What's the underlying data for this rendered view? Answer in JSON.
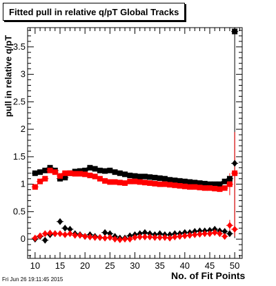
{
  "chart_data": {
    "type": "scatter",
    "title": "Fitted pull in relative q/pT  Global Tracks",
    "xlabel": "No. of Fit Points",
    "ylabel": "pull in relative q/pT",
    "xlim": [
      8.5,
      51.5
    ],
    "ylim": [
      -0.35,
      3.85
    ],
    "xticks": [
      10,
      15,
      20,
      25,
      30,
      35,
      40,
      45,
      50
    ],
    "yticks": [
      0,
      0.5,
      1,
      1.5,
      2,
      2.5,
      3,
      3.5
    ],
    "series": [
      {
        "color": "#000000",
        "marker": "square",
        "points": [
          [
            10,
            1.2
          ],
          [
            11,
            1.22
          ],
          [
            12,
            1.25
          ],
          [
            13,
            1.3
          ],
          [
            14,
            1.25
          ],
          [
            15,
            1.1
          ],
          [
            16,
            1.12
          ],
          [
            17,
            1.2
          ],
          [
            18,
            1.23
          ],
          [
            19,
            1.24
          ],
          [
            20,
            1.25
          ],
          [
            21,
            1.3
          ],
          [
            22,
            1.28
          ],
          [
            23,
            1.25
          ],
          [
            24,
            1.24
          ],
          [
            25,
            1.25
          ],
          [
            26,
            1.22
          ],
          [
            27,
            1.2
          ],
          [
            28,
            1.18
          ],
          [
            29,
            1.16
          ],
          [
            30,
            1.15
          ],
          [
            31,
            1.14
          ],
          [
            32,
            1.14
          ],
          [
            33,
            1.13
          ],
          [
            34,
            1.12
          ],
          [
            35,
            1.11
          ],
          [
            36,
            1.1
          ],
          [
            37,
            1.08
          ],
          [
            38,
            1.07
          ],
          [
            39,
            1.06
          ],
          [
            40,
            1.05
          ],
          [
            41,
            1.04
          ],
          [
            42,
            1.03
          ],
          [
            43,
            1.02
          ],
          [
            44,
            1.01
          ],
          [
            45,
            1.0
          ],
          [
            46,
            1.0
          ],
          [
            47,
            1.0
          ],
          [
            48,
            1.05
          ],
          [
            49,
            1.1
          ],
          [
            50,
            3.78
          ]
        ]
      },
      {
        "color": "#ff0000",
        "marker": "square",
        "points": [
          [
            10,
            0.95
          ],
          [
            11,
            1.05
          ],
          [
            12,
            1.1
          ],
          [
            13,
            1.25
          ],
          [
            14,
            1.22
          ],
          [
            15,
            1.15
          ],
          [
            16,
            1.2
          ],
          [
            17,
            1.2
          ],
          [
            18,
            1.19
          ],
          [
            19,
            1.19
          ],
          [
            20,
            1.18
          ],
          [
            21,
            1.16
          ],
          [
            22,
            1.14
          ],
          [
            23,
            1.1
          ],
          [
            24,
            1.06
          ],
          [
            25,
            1.04
          ],
          [
            26,
            1.04
          ],
          [
            27,
            1.03
          ],
          [
            28,
            1.02
          ],
          [
            29,
            1.05
          ],
          [
            30,
            1.05
          ],
          [
            31,
            1.04
          ],
          [
            32,
            1.03
          ],
          [
            33,
            1.02
          ],
          [
            34,
            1.01
          ],
          [
            35,
            1.0
          ],
          [
            36,
            1.0
          ],
          [
            37,
            0.99
          ],
          [
            38,
            0.98
          ],
          [
            39,
            0.97
          ],
          [
            40,
            0.96
          ],
          [
            41,
            0.95
          ],
          [
            42,
            0.95
          ],
          [
            43,
            0.94
          ],
          [
            44,
            0.93
          ],
          [
            45,
            0.93
          ],
          [
            46,
            0.92
          ],
          [
            47,
            0.91
          ],
          [
            48,
            0.93
          ],
          [
            49,
            1.0
          ],
          [
            50,
            1.2
          ]
        ]
      },
      {
        "color": "#000000",
        "marker": "diamond",
        "points": [
          [
            10,
            0.0
          ],
          [
            11,
            0.05
          ],
          [
            12,
            -0.02
          ],
          [
            13,
            0.08
          ],
          [
            14,
            0.1
          ],
          [
            15,
            0.32
          ],
          [
            16,
            0.2
          ],
          [
            17,
            0.18
          ],
          [
            18,
            0.1
          ],
          [
            19,
            0.08
          ],
          [
            20,
            0.05
          ],
          [
            21,
            0.08
          ],
          [
            22,
            0.05
          ],
          [
            23,
            0.03
          ],
          [
            24,
            0.12
          ],
          [
            25,
            0.1
          ],
          [
            26,
            0.05
          ],
          [
            27,
            0.02
          ],
          [
            28,
            0.02
          ],
          [
            29,
            0.06
          ],
          [
            30,
            0.08
          ],
          [
            31,
            0.1
          ],
          [
            32,
            0.12
          ],
          [
            33,
            0.1
          ],
          [
            34,
            0.08
          ],
          [
            35,
            0.1
          ],
          [
            36,
            0.08
          ],
          [
            37,
            0.08
          ],
          [
            38,
            0.1
          ],
          [
            39,
            0.1
          ],
          [
            40,
            0.12
          ],
          [
            41,
            0.12
          ],
          [
            42,
            0.14
          ],
          [
            43,
            0.15
          ],
          [
            44,
            0.15
          ],
          [
            45,
            0.16
          ],
          [
            46,
            0.18
          ],
          [
            47,
            0.15
          ],
          [
            48,
            0.14
          ],
          [
            49,
            0.1
          ],
          [
            50,
            1.38
          ]
        ]
      },
      {
        "color": "#ff0000",
        "marker": "diamond",
        "points": [
          [
            10,
            0.02
          ],
          [
            11,
            0.06
          ],
          [
            12,
            0.1
          ],
          [
            13,
            0.11
          ],
          [
            14,
            0.1
          ],
          [
            15,
            0.1
          ],
          [
            16,
            0.08
          ],
          [
            17,
            0.1
          ],
          [
            18,
            0.07
          ],
          [
            19,
            0.07
          ],
          [
            20,
            0.05
          ],
          [
            21,
            0.04
          ],
          [
            22,
            0.03
          ],
          [
            23,
            0.03
          ],
          [
            24,
            0.02
          ],
          [
            25,
            0.03
          ],
          [
            26,
            0.0
          ],
          [
            27,
            -0.01
          ],
          [
            28,
            0.0
          ],
          [
            29,
            0.0
          ],
          [
            30,
            0.03
          ],
          [
            31,
            0.04
          ],
          [
            32,
            0.04
          ],
          [
            33,
            0.04
          ],
          [
            34,
            0.03
          ],
          [
            35,
            0.03
          ],
          [
            36,
            0.03
          ],
          [
            37,
            0.02
          ],
          [
            38,
            0.04
          ],
          [
            39,
            0.05
          ],
          [
            40,
            0.06
          ],
          [
            41,
            0.07
          ],
          [
            42,
            0.08
          ],
          [
            43,
            0.09
          ],
          [
            44,
            0.1
          ],
          [
            45,
            0.1
          ],
          [
            46,
            0.12
          ],
          [
            47,
            0.1
          ],
          [
            48,
            0.05
          ],
          [
            49,
            0.25
          ],
          [
            50,
            0.18
          ]
        ]
      }
    ],
    "error_bars": [
      {
        "x": 50,
        "ymin": 0.02,
        "ymax": 3.85,
        "color": "#000000"
      },
      {
        "x": 50,
        "ymin": 0.05,
        "ymax": 1.95,
        "color": "#ff0000"
      },
      {
        "x": 49,
        "ymin": 0.8,
        "ymax": 1.2,
        "color": "#ff0000"
      },
      {
        "x": 49,
        "ymin": 0.15,
        "ymax": 0.35,
        "color": "#ff0000"
      }
    ]
  },
  "timestamp": "Fri Jun 26 19:11:45 2015"
}
